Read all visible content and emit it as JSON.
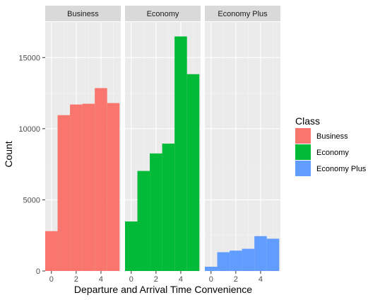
{
  "chart_data": {
    "type": "bar",
    "subtype": "faceted-histogram",
    "title": "",
    "xlabel": "Departure and Arrival Time Convenience",
    "ylabel": "Count",
    "xlim": [
      -0.5,
      5.6
    ],
    "ylim": [
      0,
      17500
    ],
    "x_ticks": [
      0,
      2,
      4
    ],
    "y_ticks": [
      0,
      5000,
      10000,
      15000
    ],
    "y_tick_labels": [
      "0",
      "5000",
      "10000",
      "15000"
    ],
    "grid": true,
    "legend": {
      "title": "Class",
      "placement": "right",
      "entries": [
        "Business",
        "Economy",
        "Economy Plus"
      ]
    },
    "bins": [
      {
        "x0": -0.5,
        "x1": 0.5
      },
      {
        "x0": 0.5,
        "x1": 1.5
      },
      {
        "x0": 1.5,
        "x1": 2.5
      },
      {
        "x0": 2.5,
        "x1": 3.5
      },
      {
        "x0": 3.5,
        "x1": 4.5
      },
      {
        "x0": 4.5,
        "x1": 5.5
      }
    ],
    "series": [
      {
        "name": "Business",
        "color": "#F8766D",
        "values": [
          2800,
          10950,
          11700,
          11750,
          12850,
          11800
        ]
      },
      {
        "name": "Economy",
        "color": "#00BA38",
        "values": [
          3480,
          7030,
          8260,
          8950,
          16480,
          13830
        ]
      },
      {
        "name": "Economy Plus",
        "color": "#619CFF",
        "values": [
          300,
          1320,
          1430,
          1560,
          2450,
          2270
        ]
      }
    ]
  }
}
